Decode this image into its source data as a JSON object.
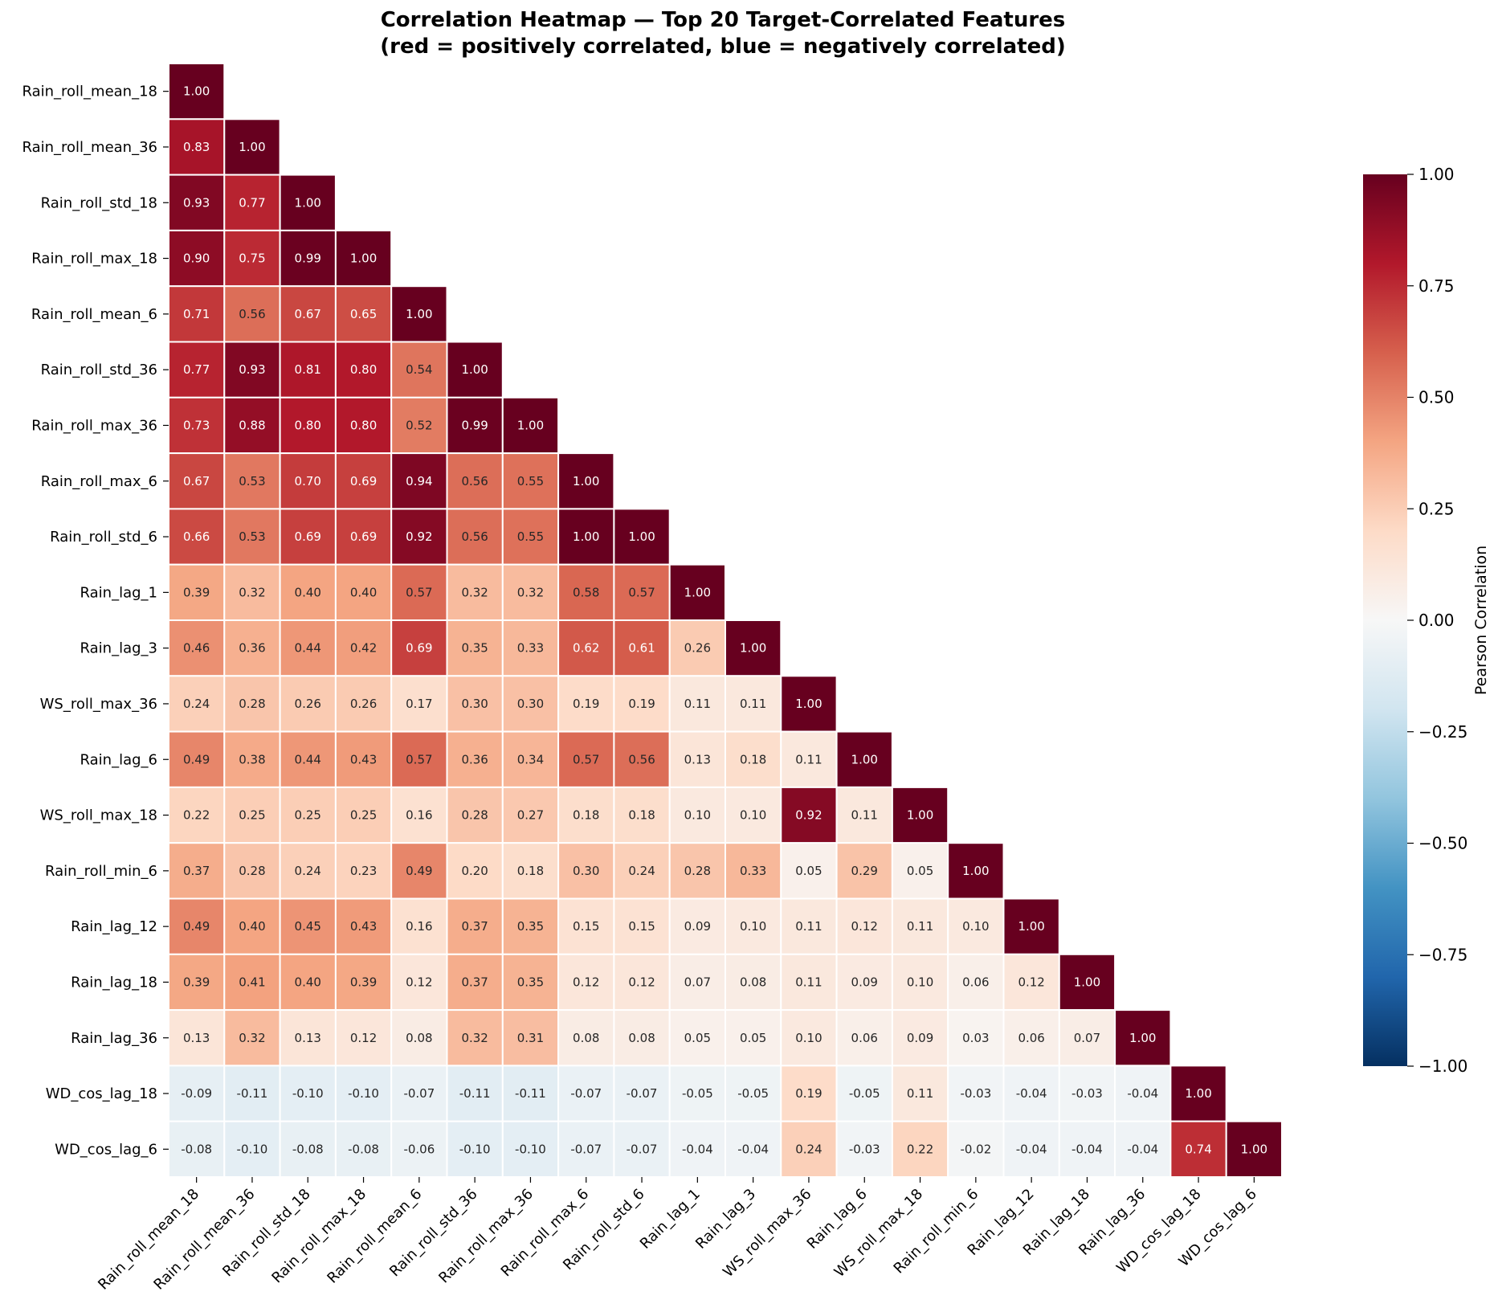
{
  "chart_data": {
    "type": "heatmap",
    "title": "Correlation Heatmap — Top 20 Target-Correlated Features",
    "subtitle": "(red = positively correlated, blue = negatively correlated)",
    "colormap": "RdBu_r",
    "vmin": -1.0,
    "vmax": 1.0,
    "mask": "upper-triangle",
    "labels": [
      "Rain_roll_mean_18",
      "Rain_roll_mean_36",
      "Rain_roll_std_18",
      "Rain_roll_max_18",
      "Rain_roll_mean_6",
      "Rain_roll_std_36",
      "Rain_roll_max_36",
      "Rain_roll_max_6",
      "Rain_roll_std_6",
      "Rain_lag_1",
      "Rain_lag_3",
      "WS_roll_max_36",
      "Rain_lag_6",
      "WS_roll_max_18",
      "Rain_roll_min_6",
      "Rain_lag_12",
      "Rain_lag_18",
      "Rain_lag_36",
      "WD_cos_lag_18",
      "WD_cos_lag_6"
    ],
    "matrix": [
      [
        1.0
      ],
      [
        0.83,
        1.0
      ],
      [
        0.93,
        0.77,
        1.0
      ],
      [
        0.9,
        0.75,
        0.99,
        1.0
      ],
      [
        0.71,
        0.56,
        0.67,
        0.65,
        1.0
      ],
      [
        0.77,
        0.93,
        0.81,
        0.8,
        0.54,
        1.0
      ],
      [
        0.73,
        0.88,
        0.8,
        0.8,
        0.52,
        0.99,
        1.0
      ],
      [
        0.67,
        0.53,
        0.7,
        0.69,
        0.94,
        0.56,
        0.55,
        1.0
      ],
      [
        0.66,
        0.53,
        0.69,
        0.69,
        0.92,
        0.56,
        0.55,
        1.0,
        1.0
      ],
      [
        0.39,
        0.32,
        0.4,
        0.4,
        0.57,
        0.32,
        0.32,
        0.58,
        0.57,
        1.0
      ],
      [
        0.46,
        0.36,
        0.44,
        0.42,
        0.69,
        0.35,
        0.33,
        0.62,
        0.61,
        0.26,
        1.0
      ],
      [
        0.24,
        0.28,
        0.26,
        0.26,
        0.17,
        0.3,
        0.3,
        0.19,
        0.19,
        0.11,
        0.11,
        1.0
      ],
      [
        0.49,
        0.38,
        0.44,
        0.43,
        0.57,
        0.36,
        0.34,
        0.57,
        0.56,
        0.13,
        0.18,
        0.11,
        1.0
      ],
      [
        0.22,
        0.25,
        0.25,
        0.25,
        0.16,
        0.28,
        0.27,
        0.18,
        0.18,
        0.1,
        0.1,
        0.92,
        0.11,
        1.0
      ],
      [
        0.37,
        0.28,
        0.24,
        0.23,
        0.49,
        0.2,
        0.18,
        0.3,
        0.24,
        0.28,
        0.33,
        0.05,
        0.29,
        0.05,
        1.0
      ],
      [
        0.49,
        0.4,
        0.45,
        0.43,
        0.16,
        0.37,
        0.35,
        0.15,
        0.15,
        0.09,
        0.1,
        0.11,
        0.12,
        0.11,
        0.1,
        1.0
      ],
      [
        0.39,
        0.41,
        0.4,
        0.39,
        0.12,
        0.37,
        0.35,
        0.12,
        0.12,
        0.07,
        0.08,
        0.11,
        0.09,
        0.1,
        0.06,
        0.12,
        1.0
      ],
      [
        0.13,
        0.32,
        0.13,
        0.12,
        0.08,
        0.32,
        0.31,
        0.08,
        0.08,
        0.05,
        0.05,
        0.1,
        0.06,
        0.09,
        0.03,
        0.06,
        0.07,
        1.0
      ],
      [
        -0.09,
        -0.11,
        -0.1,
        -0.1,
        -0.07,
        -0.11,
        -0.11,
        -0.07,
        -0.07,
        -0.05,
        -0.05,
        0.19,
        -0.05,
        0.11,
        -0.03,
        -0.04,
        -0.03,
        -0.04,
        1.0
      ],
      [
        -0.08,
        -0.1,
        -0.08,
        -0.08,
        -0.06,
        -0.1,
        -0.1,
        -0.07,
        -0.07,
        -0.04,
        -0.04,
        0.24,
        -0.03,
        0.22,
        -0.02,
        -0.04,
        -0.04,
        -0.04,
        0.74,
        1.0
      ]
    ],
    "colorbar": {
      "label": "Pearson Correlation",
      "ticks": [
        1.0,
        0.75,
        0.5,
        0.25,
        0.0,
        -0.25,
        -0.5,
        -0.75,
        -1.0
      ],
      "tick_labels": [
        "1.00",
        "0.75",
        "0.50",
        "0.25",
        "0.00",
        "−0.25",
        "−0.50",
        "−0.75",
        "−1.00"
      ]
    }
  }
}
